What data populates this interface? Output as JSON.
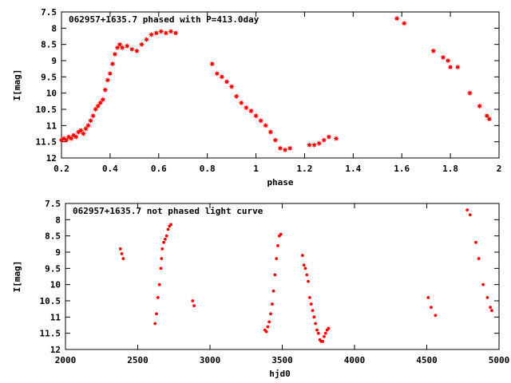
{
  "colors": {
    "points": "#ff0000",
    "axes": "#000000",
    "background": "#ffffff"
  },
  "chart_data": [
    {
      "type": "scatter",
      "title": "062957+1635.7 phased with P=413.0day",
      "xlabel": "phase",
      "ylabel": "I[mag]",
      "xlim": [
        0.2,
        2.0
      ],
      "ylim": [
        12.0,
        7.5
      ],
      "y_inverted": true,
      "grid": false,
      "marker": "star",
      "xticks": [
        "0.2",
        "0.4",
        "0.6",
        "0.8",
        "1",
        "1.2",
        "1.4",
        "1.6",
        "1.8",
        "2"
      ],
      "yticks": [
        "7.5",
        "8",
        "8.5",
        "9",
        "9.5",
        "10",
        "10.5",
        "11",
        "11.5",
        "12"
      ],
      "series": [
        {
          "x": [
            0.2,
            0.21,
            0.22,
            0.23,
            0.24,
            0.25,
            0.26,
            0.27,
            0.28,
            0.29,
            0.3,
            0.31,
            0.32,
            0.33,
            0.34,
            0.35,
            0.36,
            0.37,
            0.38,
            0.39,
            0.4,
            0.41,
            0.42,
            0.43,
            0.44,
            0.45,
            0.47,
            0.49,
            0.51,
            0.53,
            0.55,
            0.57,
            0.59,
            0.61,
            0.63,
            0.65,
            0.67,
            0.82,
            0.84,
            0.86,
            0.88,
            0.9,
            0.92,
            0.94,
            0.96,
            0.98,
            1.0,
            1.02,
            1.04,
            1.06,
            1.08,
            1.1,
            1.12,
            1.14,
            1.22,
            1.24,
            1.26,
            1.28,
            1.3,
            1.33,
            1.58,
            1.61,
            1.73,
            1.77,
            1.79,
            1.8,
            1.83,
            1.88,
            1.92,
            1.95,
            1.96
          ],
          "y": [
            11.45,
            11.4,
            11.45,
            11.35,
            11.4,
            11.3,
            11.35,
            11.2,
            11.15,
            11.25,
            11.1,
            11.0,
            10.85,
            10.7,
            10.5,
            10.4,
            10.3,
            10.2,
            9.9,
            9.6,
            9.4,
            9.1,
            8.8,
            8.6,
            8.5,
            8.6,
            8.55,
            8.65,
            8.7,
            8.5,
            8.35,
            8.2,
            8.15,
            8.1,
            8.15,
            8.1,
            8.15,
            9.1,
            9.4,
            9.5,
            9.65,
            9.8,
            10.1,
            10.3,
            10.45,
            10.55,
            10.7,
            10.85,
            11.0,
            11.2,
            11.45,
            11.7,
            11.75,
            11.7,
            11.6,
            11.6,
            11.55,
            11.45,
            11.35,
            11.4,
            7.7,
            7.85,
            8.7,
            8.9,
            9.0,
            9.2,
            9.2,
            10.0,
            10.4,
            10.7,
            10.8
          ]
        }
      ]
    },
    {
      "type": "scatter",
      "title": "062957+1635.7 not phased light curve",
      "xlabel": "hjd0",
      "ylabel": "I[mag]",
      "xlim": [
        2000,
        5000
      ],
      "ylim": [
        12.0,
        7.5
      ],
      "y_inverted": true,
      "grid": false,
      "marker": "dot",
      "xticks": [
        "2000",
        "2500",
        "3000",
        "3500",
        "4000",
        "4500",
        "5000"
      ],
      "yticks": [
        "7.5",
        "8",
        "8.5",
        "9",
        "9.5",
        "10",
        "10.5",
        "11",
        "11.5",
        "12"
      ],
      "series": [
        {
          "x": [
            2380,
            2390,
            2400,
            2620,
            2630,
            2640,
            2650,
            2660,
            2665,
            2670,
            2680,
            2690,
            2700,
            2710,
            2720,
            2730,
            2880,
            2890,
            3380,
            3390,
            3400,
            3410,
            3420,
            3430,
            3440,
            3450,
            3460,
            3470,
            3480,
            3490,
            3640,
            3650,
            3660,
            3670,
            3680,
            3690,
            3700,
            3710,
            3720,
            3730,
            3740,
            3750,
            3760,
            3770,
            3780,
            3790,
            3800,
            3810,
            3820,
            4510,
            4530,
            4560,
            4780,
            4800,
            4840,
            4860,
            4890,
            4920,
            4940,
            4950
          ],
          "y": [
            8.9,
            9.05,
            9.2,
            11.2,
            10.9,
            10.4,
            10.0,
            9.5,
            9.2,
            8.9,
            8.7,
            8.6,
            8.5,
            8.3,
            8.2,
            8.15,
            10.5,
            10.65,
            11.4,
            11.45,
            11.3,
            11.15,
            10.9,
            10.6,
            10.2,
            9.7,
            9.2,
            8.8,
            8.5,
            8.45,
            9.1,
            9.4,
            9.5,
            9.7,
            9.9,
            10.4,
            10.6,
            10.8,
            11.0,
            11.2,
            11.4,
            11.5,
            11.7,
            11.75,
            11.75,
            11.6,
            11.5,
            11.4,
            11.35,
            10.4,
            10.7,
            10.95,
            7.7,
            7.85,
            8.7,
            9.2,
            10.0,
            10.4,
            10.7,
            10.8
          ]
        }
      ]
    }
  ]
}
